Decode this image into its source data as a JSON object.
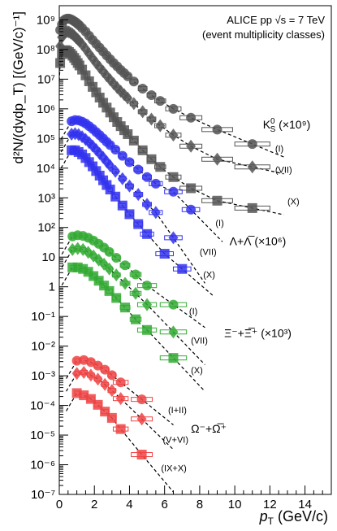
{
  "chart_data": {
    "type": "scatter",
    "title_lines": [
      "ALICE pp √s = 7 TeV",
      "(event multiplicity classes)"
    ],
    "xlabel": "p",
    "xlabel_sub": "T",
    "xlabel_unit": " (GeV/c)",
    "ylabel": "d²N/(dydp_T) [(GeV/c)⁻¹]",
    "x_scale": "linear",
    "y_scale": "log",
    "xlim": [
      0,
      15.5
    ],
    "ylim": [
      1e-07,
      3000000000.0
    ],
    "x_ticks": [
      "0",
      "2",
      "4",
      "6",
      "8",
      "10",
      "12",
      "14"
    ],
    "y_ticks": [
      "10⁻⁷",
      "10⁻⁶",
      "10⁻⁵",
      "10⁻⁴",
      "10⁻³",
      "10⁻²",
      "10⁻¹",
      "1",
      "10",
      "10²",
      "10³",
      "10⁴",
      "10⁵",
      "10⁶",
      "10⁷",
      "10⁸",
      "10⁹"
    ],
    "species_labels": [
      {
        "text": "K",
        "sup": "0",
        "sub": "S",
        "scale": " (×10⁹)",
        "x": 11.6,
        "y": 220000.0
      },
      {
        "text": "Λ+Λ̅",
        "scale": " (×10⁶)",
        "x": 9.7,
        "y": 25
      },
      {
        "text": "Ξ⁻+Ξ̅⁺",
        "scale": " (×10³)",
        "x": 9.4,
        "y": 0.02
      },
      {
        "text": "Ω⁻+Ω̅⁺",
        "scale": "",
        "x": 7.5,
        "y": 1.2e-05
      }
    ],
    "series": [
      {
        "name": "(I)",
        "species": "K0S",
        "marker": "circle",
        "color": "#555555",
        "label_x": 12.3,
        "label_y": 36000.0,
        "x": [
          0.05,
          0.15,
          0.25,
          0.35,
          0.45,
          0.55,
          0.65,
          0.75,
          0.85,
          0.95,
          1.05,
          1.15,
          1.3,
          1.5,
          1.7,
          1.9,
          2.1,
          2.3,
          2.5,
          2.7,
          2.9,
          3.1,
          3.3,
          3.5,
          3.7,
          3.9,
          4.25,
          4.75,
          5.25,
          5.75,
          6.5,
          7.5,
          9.0,
          11.0
        ],
        "y": [
          450000000.0,
          700000000.0,
          950000000.0,
          1050000000.0,
          1100000000.0,
          1100000000.0,
          1050000000.0,
          980000000.0,
          900000000.0,
          820000000.0,
          730000000.0,
          650000000.0,
          530000000.0,
          400000000.0,
          290000000.0,
          210000000.0,
          155000000.0,
          115000000.0,
          85000000.0,
          63000000.0,
          47000000.0,
          35000000.0,
          27000000.0,
          20500000.0,
          16000000.0,
          12500000.0,
          8300000.0,
          4800000.0,
          2900000.0,
          1850000.0,
          1000000.0,
          500000.0,
          200000.0,
          65000.0
        ]
      },
      {
        "name": "(VII)",
        "species": "K0S",
        "marker": "diamond",
        "color": "#555555",
        "label_x": 12.3,
        "label_y": 7000.0,
        "x": [
          0.05,
          0.15,
          0.25,
          0.35,
          0.45,
          0.55,
          0.65,
          0.75,
          0.85,
          0.95,
          1.05,
          1.15,
          1.3,
          1.5,
          1.7,
          1.9,
          2.1,
          2.3,
          2.5,
          2.7,
          2.9,
          3.1,
          3.3,
          3.5,
          3.7,
          3.9,
          4.25,
          4.75,
          5.25,
          5.75,
          6.5,
          7.5,
          9.0,
          11.0
        ],
        "y": [
          130000000.0,
          260000000.0,
          350000000.0,
          390000000.0,
          400000000.0,
          390000000.0,
          360000000.0,
          330000000.0,
          290000000.0,
          250000000.0,
          220000000.0,
          190000000.0,
          150000000.0,
          105000000.0,
          72000000.0,
          50000000.0,
          35000000.0,
          25000000.0,
          18000000.0,
          13000000.0,
          9500000.0,
          7000000.0,
          5200000.0,
          3900000.0,
          3000000.0,
          2300000.0,
          1500000.0,
          800000.0,
          450000.0,
          270000.0,
          130000.0,
          55000.0,
          20000.0,
          11000.0
        ]
      },
      {
        "name": "(X)",
        "species": "K0S",
        "marker": "square",
        "color": "#555555",
        "label_x": 13.0,
        "label_y": 600.0,
        "x": [
          0.05,
          0.15,
          0.25,
          0.35,
          0.45,
          0.55,
          0.65,
          0.75,
          0.85,
          0.95,
          1.05,
          1.15,
          1.3,
          1.5,
          1.7,
          1.9,
          2.1,
          2.3,
          2.5,
          2.7,
          2.9,
          3.1,
          3.3,
          3.5,
          3.7,
          3.9,
          4.25,
          4.75,
          5.25,
          5.75,
          6.5,
          7.5,
          9.0,
          11.0
        ],
        "y": [
          35000000.0,
          70000000.0,
          90000000.0,
          95000000.0,
          90000000.0,
          82000000.0,
          72000000.0,
          62000000.0,
          52000000.0,
          43000000.0,
          35000000.0,
          29000000.0,
          21000000.0,
          13500000.0,
          8500000.0,
          5500000.0,
          3600000.0,
          2400000.0,
          1600000.0,
          1100000.0,
          750000.0,
          520000.0,
          360000.0,
          260000.0,
          190000.0,
          140000.0,
          85000.0,
          40000.0,
          20000.0,
          11000.0,
          5000.0,
          2100.0,
          800.0,
          450.0
        ]
      },
      {
        "name": "(I)",
        "species": "Lambda",
        "marker": "circle",
        "color": "#3333ee",
        "label_x": 8.9,
        "label_y": 110,
        "x": [
          0.7,
          0.9,
          1.1,
          1.3,
          1.5,
          1.7,
          1.9,
          2.1,
          2.3,
          2.5,
          2.7,
          2.9,
          3.2,
          3.6,
          4.0,
          4.5,
          5.0,
          5.5,
          6.5,
          7.5
        ],
        "y": [
          380000.0,
          420000.0,
          410000.0,
          370000.0,
          320000.0,
          260000.0,
          210000.0,
          165000.0,
          130000.0,
          100000.0,
          77000.0,
          60000.0,
          42000.0,
          26000.0,
          16000.0,
          9000.0,
          5000.0,
          3000.0,
          1600.0,
          400.0
        ]
      },
      {
        "name": "(VII)",
        "species": "Lambda",
        "marker": "diamond",
        "color": "#3333ee",
        "label_x": 8.0,
        "label_y": 12,
        "x": [
          0.7,
          0.9,
          1.1,
          1.3,
          1.5,
          1.7,
          1.9,
          2.1,
          2.3,
          2.5,
          2.7,
          2.9,
          3.2,
          3.6,
          4.0,
          4.5,
          5.0,
          5.5,
          6.5
        ],
        "y": [
          140000.0,
          145000.0,
          135000.0,
          115000.0,
          93000.0,
          73000.0,
          56000.0,
          42000.0,
          31000.0,
          23000.0,
          16500.0,
          12000.0,
          7800.0,
          4400.0,
          2500.0,
          1300.0,
          600.0,
          320.0,
          45.0
        ]
      },
      {
        "name": "(X)",
        "species": "Lambda",
        "marker": "square",
        "color": "#3333ee",
        "label_x": 8.2,
        "label_y": 2,
        "x": [
          0.7,
          0.9,
          1.1,
          1.3,
          1.5,
          1.7,
          1.9,
          2.1,
          2.3,
          2.5,
          2.7,
          2.9,
          3.2,
          3.6,
          4.0,
          4.5,
          5.0,
          6.0,
          7.0
        ],
        "y": [
          40000.0,
          40000.0,
          35000.0,
          29000.0,
          22000.0,
          16000.0,
          11500.0,
          8000.0,
          5600.0,
          3900.0,
          2700.0,
          1900.0,
          1100.0,
          550.0,
          280.0,
          130.0,
          60.0,
          13.0,
          4
        ]
      },
      {
        "name": "(I)",
        "species": "Xi",
        "marker": "circle",
        "color": "#33aa33",
        "label_x": 7.4,
        "label_y": 0.12,
        "x": [
          0.75,
          1.05,
          1.35,
          1.65,
          1.95,
          2.25,
          2.55,
          2.85,
          3.25,
          3.75,
          4.35,
          5.0,
          6.5
        ],
        "y": [
          50,
          55,
          52,
          45,
          36,
          28,
          21,
          15,
          9.5,
          5.3,
          2.6,
          1.1,
          0.25
        ]
      },
      {
        "name": "(VII)",
        "species": "Xi",
        "marker": "diamond",
        "color": "#33aa33",
        "label_x": 7.5,
        "label_y": 0.012,
        "x": [
          0.75,
          1.05,
          1.35,
          1.65,
          1.95,
          2.25,
          2.55,
          2.85,
          3.25,
          3.75,
          4.35,
          5.0,
          6.5
        ],
        "y": [
          18,
          19.5,
          18,
          14.5,
          11,
          8,
          5.8,
          4,
          2.5,
          1.3,
          0.6,
          0.25,
          0.03
        ]
      },
      {
        "name": "(X)",
        "species": "Xi",
        "marker": "square",
        "color": "#33aa33",
        "label_x": 7.5,
        "label_y": 0.0012,
        "x": [
          0.75,
          1.05,
          1.35,
          1.65,
          1.95,
          2.25,
          2.55,
          2.85,
          3.25,
          3.75,
          4.35,
          5.0,
          6.5
        ],
        "y": [
          4.5,
          4.5,
          4,
          3.2,
          2.3,
          1.6,
          1.1,
          0.72,
          0.42,
          0.2,
          0.08,
          0.035,
          0.004
        ]
      },
      {
        "name": "(I+II)",
        "species": "Omega",
        "marker": "circle",
        "color": "#ee4444",
        "label_x": 6.2,
        "label_y": 5.5e-05,
        "x": [
          1.0,
          1.4,
          1.8,
          2.2,
          2.6,
          3.0,
          3.5,
          4.7
        ],
        "y": [
          0.0032,
          0.0034,
          0.0029,
          0.0022,
          0.0016,
          0.00105,
          0.0006,
          0.00016
        ]
      },
      {
        "name": "(V+VI)",
        "species": "Omega",
        "marker": "diamond",
        "color": "#ee4444",
        "label_x": 5.9,
        "label_y": 5.5e-06,
        "x": [
          1.0,
          1.4,
          1.8,
          2.2,
          2.6,
          3.0,
          3.5,
          4.7
        ],
        "y": [
          0.0012,
          0.0013,
          0.00105,
          0.00077,
          0.00051,
          0.00032,
          0.00017,
          3.5e-05
        ]
      },
      {
        "name": "(IX+X)",
        "species": "Omega",
        "marker": "square",
        "color": "#ee4444",
        "label_x": 5.8,
        "label_y": 6e-07,
        "x": [
          1.0,
          1.4,
          1.8,
          2.2,
          2.6,
          3.0,
          3.5,
          4.7
        ],
        "y": [
          0.00026,
          0.00022,
          0.000165,
          0.000105,
          6.2e-05,
          3.8e-05,
          1.6e-05,
          2.2e-06
        ]
      }
    ],
    "legend": "none",
    "grid": false
  }
}
